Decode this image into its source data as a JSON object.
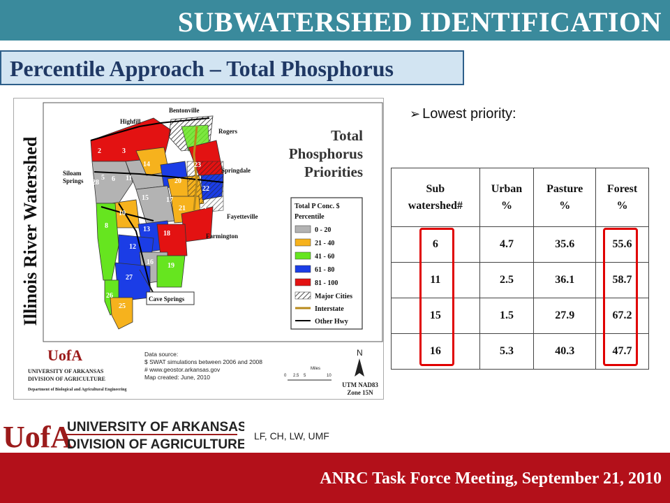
{
  "header": {
    "title": "SUBWATERSHED IDENTIFICATION",
    "subtitle": "Percentile Approach – Total Phosphorus"
  },
  "bullet": {
    "text": "Lowest priority:"
  },
  "table": {
    "headers": [
      [
        "Sub",
        "watershed#"
      ],
      [
        "Urban",
        "%"
      ],
      [
        "Pasture",
        "%"
      ],
      [
        "Forest",
        "%"
      ]
    ],
    "rows": [
      [
        "6",
        "4.7",
        "35.6",
        "55.6"
      ],
      [
        "11",
        "2.5",
        "36.1",
        "58.7"
      ],
      [
        "15",
        "1.5",
        "27.9",
        "67.2"
      ],
      [
        "16",
        "5.3",
        "40.3",
        "47.7"
      ]
    ]
  },
  "map": {
    "vertical_title": "Illinois River Watershed",
    "title_lines": [
      "Total",
      "Phosphorus",
      "Priorities"
    ],
    "cities": [
      "Bentonville",
      "Highfill",
      "Rogers",
      "Siloam",
      "Springs",
      "Springdale",
      "Fayetteville",
      "Farmington",
      "Cave Springs"
    ],
    "subwatershed_numbers": [
      "2",
      "3",
      "4",
      "5",
      "6",
      "7",
      "8",
      "9",
      "10",
      "11",
      "12",
      "13",
      "14",
      "15",
      "16",
      "17",
      "18",
      "19",
      "20",
      "21",
      "22",
      "23",
      "24",
      "25",
      "26",
      "27",
      "28"
    ],
    "legend": {
      "title": [
        "Total P Conc. $",
        "Percentile"
      ],
      "items": [
        {
          "label": "0 - 20",
          "color": "#b3b3b3"
        },
        {
          "label": "21 - 40",
          "color": "#f6b21d"
        },
        {
          "label": "41 - 60",
          "color": "#66e51f"
        },
        {
          "label": "61 - 80",
          "color": "#1b3de6"
        },
        {
          "label": "81 - 100",
          "color": "#e31212"
        },
        {
          "label": "Major Cities",
          "color": "hatch"
        },
        {
          "label": "Interstate",
          "color": "interstate"
        },
        {
          "label": "Other Hwy",
          "color": "#000000"
        }
      ]
    },
    "source_lines": [
      "Data source:",
      "$ SWAT simulations between 2006 and 2008",
      "# www.geostor.arkansas.gov",
      "Map created: June, 2010"
    ],
    "scale": {
      "label": "Miles",
      "ticks": [
        "0",
        "2.5",
        "5",
        "10"
      ]
    },
    "north": "N",
    "projection": [
      "UTM NAD83",
      "Zone 15N"
    ],
    "logo_small": {
      "mark": "UofA",
      "lines": [
        "UNIVERSITY OF ARKANSAS",
        "DIVISION OF AGRICULTURE"
      ],
      "dept": "Department of Biological and Agricultural Engineering"
    }
  },
  "footer": {
    "logo_mark": "UofA",
    "logo_lines": [
      "UNIVERSITY OF ARKANSAS",
      "DIVISION OF AGRICULTURE"
    ],
    "credits": "LF, CH, LW, UMF",
    "meeting": "ANRC Task Force Meeting, September 21, 2010"
  }
}
